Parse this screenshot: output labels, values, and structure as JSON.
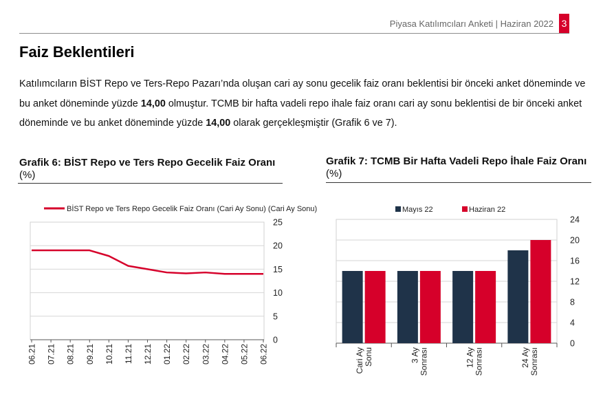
{
  "header": {
    "text": "Piyasa Katılımcıları Anketi | Haziran 2022",
    "page_number": "3",
    "accent_color": "#d6002a"
  },
  "section": {
    "title": "Faiz Beklentileri",
    "paragraph": {
      "p1": "Katılımcıların BİST Repo ve Ters-Repo Pazarı’nda oluşan cari ay sonu gecelik faiz oranı beklentisi bir önceki anket döneminde ve bu anket döneminde yüzde ",
      "v1": "14,00",
      "p2": " olmuştur. TCMB bir hafta vadeli repo ihale faiz oranı cari ay sonu beklentisi de bir önceki anket döneminde ve bu anket döneminde yüzde ",
      "v2": "14,00",
      "p3": " olarak gerçekleşmiştir (Grafik 6 ve 7)."
    }
  },
  "chart6_caption": {
    "bold": "Grafik 6:  BİST Repo ve Ters Repo Gecelik Faiz Oranı",
    "unit": " (%)"
  },
  "chart7_caption": {
    "bold": "Grafik 7: TCMB Bir Hafta Vadeli Repo İhale Faiz Oranı",
    "unit": " (%)"
  },
  "chart_data": [
    {
      "type": "line",
      "title": "Grafik 6:  BİST Repo ve Ters Repo Gecelik Faiz Oranı (%)",
      "categories": [
        "06.21",
        "07.21",
        "08.21",
        "09.21",
        "10.21",
        "11.21",
        "12.21",
        "01.22",
        "02.22",
        "03.22",
        "04.22",
        "05.22",
        "06.22"
      ],
      "series": [
        {
          "name": "BİST Repo ve Ters Repo Gecelik Faiz Oranı (Cari Ay Sonu)",
          "values": [
            19.0,
            19.0,
            19.0,
            19.0,
            17.8,
            15.7,
            15.0,
            14.3,
            14.1,
            14.3,
            14.0,
            14.0,
            14.0
          ],
          "color": "#d6002a"
        }
      ],
      "yticks": [
        0,
        5,
        10,
        15,
        20,
        25
      ],
      "ylim": [
        0,
        25
      ],
      "grid": true,
      "legend": "top"
    },
    {
      "type": "bar",
      "title": "Grafik 7: TCMB Bir Hafta Vadeli Repo İhale Faiz Oranı (%)",
      "categories": [
        [
          "Cari Ay",
          "Sonu"
        ],
        [
          "3 Ay",
          "Sonrası"
        ],
        [
          "12 Ay",
          "Sonrası"
        ],
        [
          "24 Ay",
          "Sonrası"
        ]
      ],
      "series": [
        {
          "name": "Mayıs 22",
          "values": [
            14.0,
            14.0,
            14.0,
            18.0
          ],
          "color": "#1f3349"
        },
        {
          "name": "Haziran 22",
          "values": [
            14.0,
            14.0,
            14.0,
            20.0
          ],
          "color": "#d6002a"
        }
      ],
      "yticks": [
        0,
        4,
        8,
        12,
        16,
        20,
        24
      ],
      "ylim": [
        0,
        24
      ],
      "grid": true,
      "legend": "top"
    }
  ]
}
